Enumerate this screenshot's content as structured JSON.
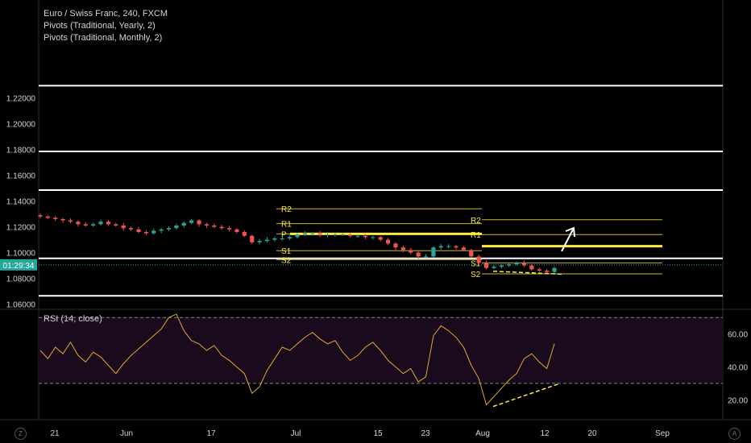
{
  "legend": {
    "symbol": "Euro / Swiss Franc, 240, FXCM",
    "indicator1": "Pivots (Traditional, Yearly, 2)",
    "indicator2": "Pivots (Traditional, Monthly, 2)",
    "rsi": "RSI (14, close)"
  },
  "price_tag": "01:29:34",
  "footer_left_icon": "Z",
  "footer_right_icon": "A",
  "colors": {
    "up": "#26a69a",
    "down": "#ef5350",
    "pivot": "#c9b53a",
    "pivot_bold": "#ffeb3b",
    "rsi_line": "#e5a92b",
    "rsi_bg": "#1a0a1e",
    "white_level": "#ffffff"
  },
  "chart_data": [
    {
      "type": "candlestick",
      "ylim": [
        1.056,
        1.296
      ],
      "y_ticks": [
        "1.22000",
        "1.20000",
        "1.18000",
        "1.16000",
        "1.14000",
        "1.12000",
        "1.10000",
        "1.08000",
        "1.06000"
      ],
      "x_ticks": [
        "21",
        "Jun",
        "17",
        "Jul",
        "15",
        "23",
        "Aug",
        "12",
        "20",
        "Sep"
      ],
      "horizontal_levels": [
        1.2295,
        1.1785,
        1.1485,
        1.0955,
        1.0665
      ],
      "yearly_pivots_bold": [
        1.1145,
        1.105
      ],
      "pivots_june": {
        "R2": 1.134,
        "R1": 1.1225,
        "P": 1.1145,
        "S1": 1.1015,
        "S2": 1.0945
      },
      "pivots_aug": {
        "R2": 1.1255,
        "R1": 1.114,
        "S1": 1.092,
        "S2": 1.0835
      },
      "close_series": [
        1.128,
        1.127,
        1.126,
        1.125,
        1.124,
        1.122,
        1.121,
        1.122,
        1.124,
        1.122,
        1.121,
        1.119,
        1.118,
        1.116,
        1.115,
        1.117,
        1.118,
        1.119,
        1.121,
        1.123,
        1.125,
        1.122,
        1.121,
        1.12,
        1.119,
        1.118,
        1.116,
        1.113,
        1.108,
        1.109,
        1.11,
        1.111,
        1.111,
        1.112,
        1.114,
        1.115,
        1.115,
        1.114,
        1.114,
        1.114,
        1.114,
        1.113,
        1.113,
        1.112,
        1.112,
        1.11,
        1.107,
        1.104,
        1.102,
        1.1,
        1.097,
        1.097,
        1.104,
        1.105,
        1.105,
        1.104,
        1.102,
        1.097,
        1.092,
        1.088,
        1.089,
        1.09,
        1.091,
        1.092,
        1.09,
        1.087,
        1.086,
        1.085,
        1.088
      ],
      "last_price": 1.0905
    },
    {
      "type": "line",
      "name": "RSI (14, close)",
      "ylim": [
        8,
        75
      ],
      "y_ticks": [
        "60.00",
        "40.00",
        "20.00"
      ],
      "bands": [
        70,
        30
      ],
      "values": [
        50,
        45,
        52,
        48,
        55,
        47,
        43,
        49,
        46,
        41,
        36,
        42,
        47,
        51,
        55,
        59,
        63,
        70,
        72,
        62,
        56,
        54,
        50,
        53,
        47,
        44,
        40,
        36,
        24,
        28,
        38,
        45,
        52,
        50,
        54,
        58,
        61,
        57,
        54,
        56,
        49,
        44,
        47,
        52,
        55,
        50,
        44,
        40,
        36,
        39,
        31,
        34,
        59,
        65,
        62,
        58,
        52,
        41,
        33,
        17,
        22,
        27,
        32,
        36,
        45,
        48,
        43,
        39,
        54
      ]
    }
  ]
}
